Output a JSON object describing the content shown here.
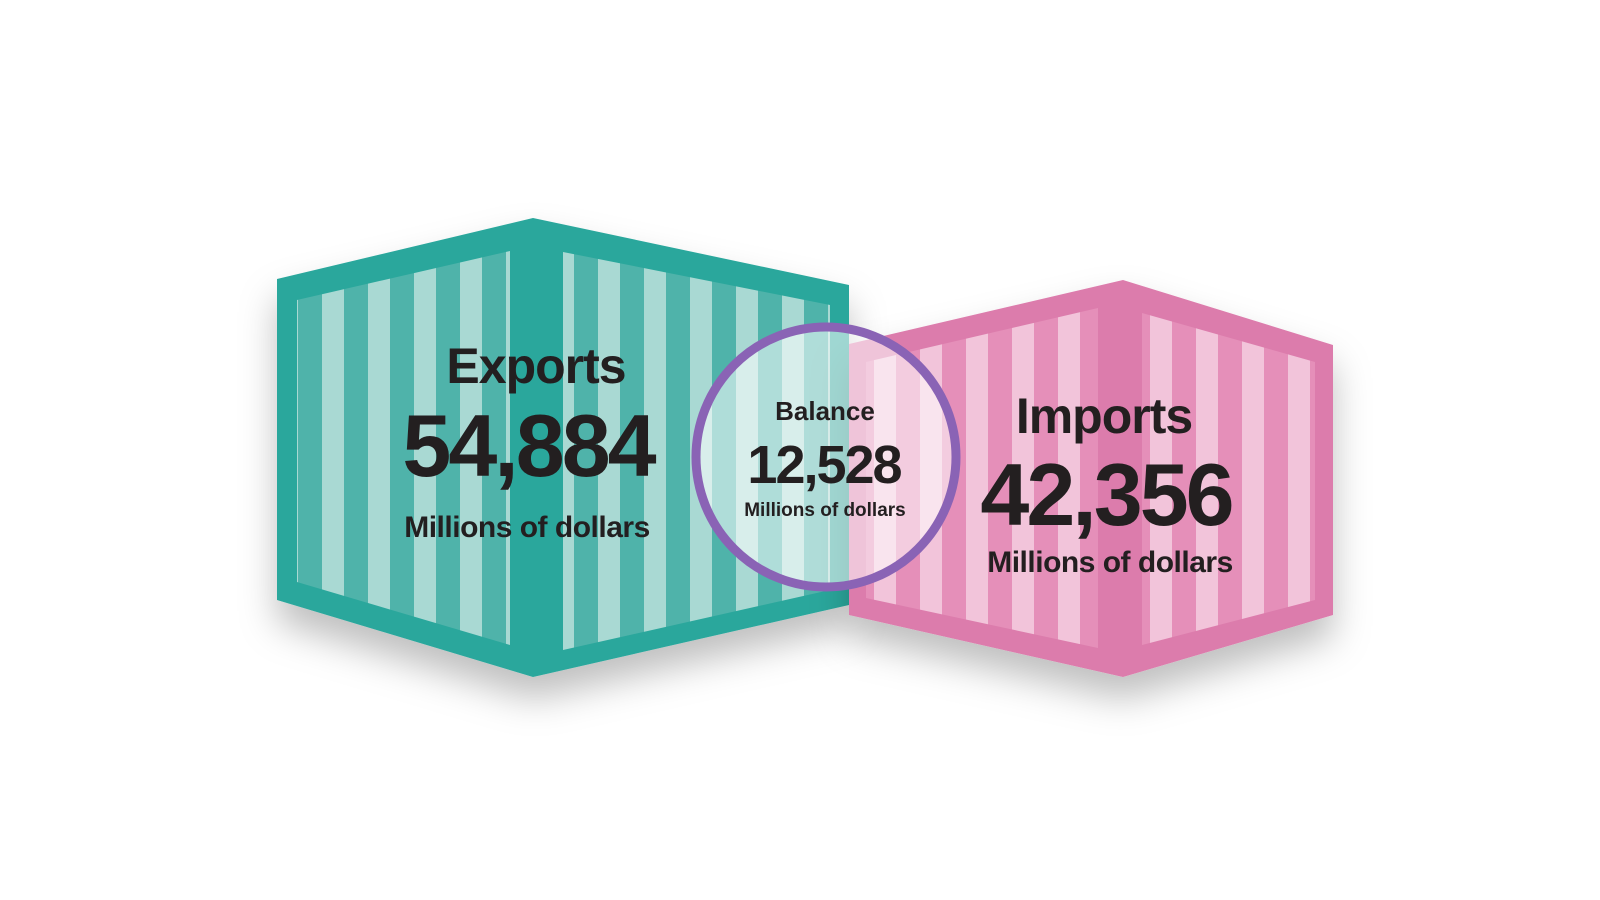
{
  "exports": {
    "label": "Exports",
    "value": "54,884",
    "unit": "Millions of dollars"
  },
  "balance": {
    "label": "Balance",
    "value": "12,528",
    "unit": "Millions of dollars"
  },
  "imports": {
    "label": "Imports",
    "value": "42,356",
    "unit": "Millions of dollars"
  }
}
